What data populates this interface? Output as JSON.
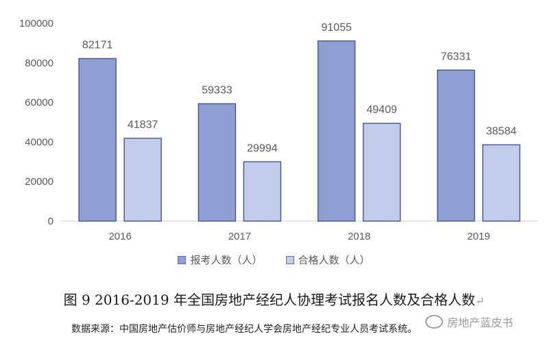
{
  "chart_data": {
    "type": "bar",
    "categories": [
      "2016",
      "2017",
      "2018",
      "2019"
    ],
    "series": [
      {
        "name": "报考人数（人）",
        "values": [
          82171,
          59333,
          91055,
          76331
        ],
        "color": "#8f9fd3"
      },
      {
        "name": "合格人数（人）",
        "values": [
          41837,
          29994,
          49409,
          38584
        ],
        "color": "#c3cbea"
      }
    ],
    "ylim": [
      0,
      100000
    ],
    "yticks": [
      0,
      20000,
      40000,
      60000,
      80000,
      100000
    ],
    "grid": false,
    "legend": "bottom",
    "border_color": "#4a5d93"
  },
  "caption": "图 9  2016-2019 年全国房地产经纪人协理考试报名人数及合格人数",
  "caption_mark": "↵",
  "source": "数据来源：中国房地产估价师与房地产经纪人学会房地产经纪专业人员考试系统。",
  "watermark": "房地产蓝皮书"
}
